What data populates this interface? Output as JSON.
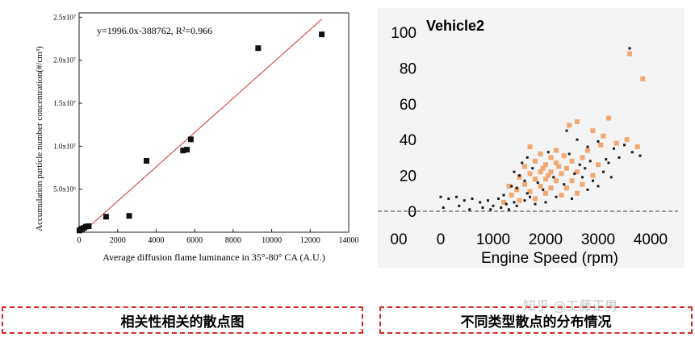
{
  "colors": {
    "left_marker": "#111111",
    "left_fit_line": "#d83030",
    "right_point_orange": "#f2a870",
    "right_point_dark": "#1a1a1a",
    "caption_border": "#d42a2a"
  },
  "chart_data": [
    {
      "type": "scatter",
      "title": "",
      "annotation": "y=1996.0x-388762, R²=0.966",
      "xlabel": "Average diffusion flame luminance in 35°-80° CA (A.U.)",
      "ylabel": "Accumulation  particle number concentration(#/cm³)",
      "xlim": [
        0,
        14000
      ],
      "ylim": [
        0,
        25500000
      ],
      "x_ticks": [
        0,
        2000,
        4000,
        6000,
        8000,
        10000,
        12000,
        14000
      ],
      "x_tick_labels": [
        "0",
        "2000",
        "4000",
        "6000",
        "8000",
        "10000",
        "12000",
        "14000"
      ],
      "y_ticks": [
        5000000,
        10000000,
        15000000,
        20000000,
        25000000
      ],
      "y_tick_labels": [
        "5.0x10⁶",
        "1.0x10⁷",
        "1.5x10⁷",
        "2.0x10⁷",
        "2.5x10⁷"
      ],
      "series": [
        {
          "points": [
            [
              20,
              200000
            ],
            [
              80,
              300000
            ],
            [
              150,
              400000
            ],
            [
              250,
              500000
            ],
            [
              350,
              650000
            ],
            [
              500,
              700000
            ],
            [
              1400,
              1800000
            ],
            [
              2600,
              1900000
            ],
            [
              3500,
              8300000
            ],
            [
              5400,
              9500000
            ],
            [
              5600,
              9600000
            ],
            [
              5800,
              10800000
            ],
            [
              9300,
              21400000
            ],
            [
              12600,
              23000000
            ]
          ]
        }
      ],
      "fit_line": {
        "slope": 1996.0,
        "intercept": -388762,
        "x_range": [
          190,
          12600
        ]
      },
      "grid": false
    },
    {
      "type": "scatter",
      "title": "Vehicle2",
      "xlabel": "Engine Speed (rpm)",
      "ylabel": "",
      "xlim": [
        -500,
        4200
      ],
      "ylim": [
        -2,
        100
      ],
      "x_tick_labels": [
        {
          "v": -800,
          "t": "00"
        },
        {
          "v": 0,
          "t": "0"
        },
        {
          "v": 1000,
          "t": "1000"
        },
        {
          "v": 2000,
          "t": "2000"
        },
        {
          "v": 3000,
          "t": "3000"
        },
        {
          "v": 4000,
          "t": "4000"
        }
      ],
      "y_ticks": [
        0,
        20,
        40,
        60,
        80,
        100
      ],
      "y_tick_labels": [
        "0",
        "20",
        "40",
        "60",
        "80",
        "100"
      ],
      "series": [
        {
          "color_key": "orange",
          "points": [
            [
              3600,
              88
            ],
            [
              3850,
              74
            ],
            [
              3200,
              52
            ],
            [
              2600,
              50
            ],
            [
              2450,
              48
            ],
            [
              2900,
              45
            ],
            [
              3100,
              42
            ],
            [
              3350,
              38
            ],
            [
              3550,
              40
            ],
            [
              3750,
              36
            ],
            [
              1700,
              36
            ],
            [
              2200,
              34
            ],
            [
              2800,
              34
            ],
            [
              3050,
              37
            ],
            [
              1900,
              32
            ],
            [
              2100,
              30
            ],
            [
              2350,
              31
            ],
            [
              2500,
              28
            ],
            [
              2700,
              30
            ],
            [
              1800,
              28
            ],
            [
              2000,
              26
            ],
            [
              2200,
              27
            ],
            [
              1600,
              25
            ],
            [
              2400,
              24
            ],
            [
              1900,
              22
            ],
            [
              2100,
              22
            ],
            [
              2300,
              21
            ],
            [
              1700,
              21
            ],
            [
              2600,
              22
            ],
            [
              1500,
              19
            ],
            [
              1800,
              18
            ],
            [
              2000,
              18
            ],
            [
              2200,
              17
            ],
            [
              2500,
              17
            ],
            [
              1600,
              15
            ],
            [
              1900,
              14
            ],
            [
              2100,
              13
            ],
            [
              2400,
              13
            ],
            [
              2700,
              15
            ],
            [
              1450,
              12
            ],
            [
              1700,
              11
            ],
            [
              2000,
              10
            ],
            [
              2300,
              9
            ],
            [
              1350,
              9
            ],
            [
              1200,
              5
            ],
            [
              1500,
              6
            ],
            [
              1800,
              7
            ],
            [
              2600,
              10
            ],
            [
              2900,
              20
            ],
            [
              3000,
              26
            ],
            [
              1300,
              14
            ],
            [
              2050,
              20
            ],
            [
              1950,
              24
            ],
            [
              2250,
              25
            ]
          ]
        },
        {
          "color_key": "dark",
          "points": [
            [
              3600,
              91
            ],
            [
              2400,
              45
            ],
            [
              2600,
              40
            ],
            [
              2800,
              36
            ],
            [
              3000,
              39
            ],
            [
              3300,
              35
            ],
            [
              3500,
              37
            ],
            [
              1550,
              27
            ],
            [
              1650,
              30
            ],
            [
              1750,
              24
            ],
            [
              2050,
              33
            ],
            [
              2450,
              32
            ],
            [
              2650,
              26
            ],
            [
              2850,
              28
            ],
            [
              3150,
              29
            ],
            [
              1400,
              22
            ],
            [
              1500,
              20
            ],
            [
              1600,
              17
            ],
            [
              1850,
              16
            ],
            [
              2150,
              19
            ],
            [
              1350,
              14
            ],
            [
              1450,
              13
            ],
            [
              1650,
              10
            ],
            [
              1950,
              12
            ],
            [
              2350,
              15
            ],
            [
              1200,
              9
            ],
            [
              1100,
              7
            ],
            [
              1250,
              4
            ],
            [
              1400,
              5
            ],
            [
              2700,
              19
            ],
            [
              2900,
              17
            ],
            [
              3100,
              22
            ],
            [
              3250,
              19
            ],
            [
              2550,
              21
            ],
            [
              2750,
              24
            ],
            [
              0,
              8
            ],
            [
              150,
              7
            ],
            [
              300,
              8
            ],
            [
              450,
              6
            ],
            [
              600,
              7
            ],
            [
              750,
              5
            ],
            [
              900,
              6
            ],
            [
              1000,
              3
            ],
            [
              1150,
              2
            ],
            [
              1300,
              1
            ],
            [
              50,
              2
            ],
            [
              350,
              3
            ],
            [
              550,
              1
            ],
            [
              800,
              2
            ],
            [
              950,
              1
            ],
            [
              1450,
              3
            ],
            [
              1600,
              6
            ],
            [
              1700,
              8
            ],
            [
              1800,
              4
            ],
            [
              2000,
              5
            ],
            [
              2200,
              8
            ],
            [
              2500,
              7
            ],
            [
              2800,
              12
            ],
            [
              3000,
              14
            ],
            [
              3200,
              27
            ],
            [
              3400,
              30
            ],
            [
              3650,
              33
            ],
            [
              3800,
              31
            ]
          ]
        }
      ],
      "grid": false
    }
  ],
  "captions": {
    "left": "相关性相关的散点图",
    "right": "不同类型散点的分布情况"
  },
  "watermark": "知乎 @工藤正男"
}
